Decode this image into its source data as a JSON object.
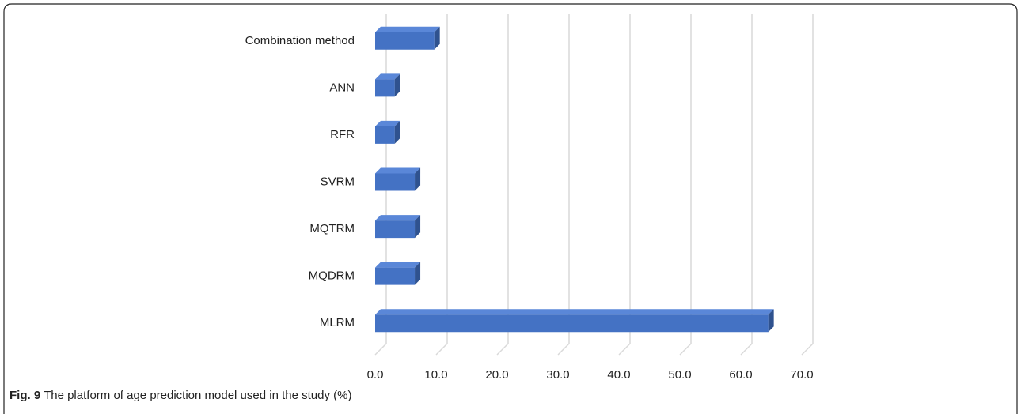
{
  "chart_data": {
    "type": "bar3d_horizontal",
    "categories": [
      "Combination method",
      "ANN",
      "RFR",
      "SVRM",
      "MQTRM",
      "MQDRM",
      "MLRM"
    ],
    "values": [
      9.7,
      3.2,
      3.2,
      6.5,
      6.5,
      6.5,
      64.5
    ],
    "color": "#4472c4",
    "xlim": [
      0,
      70
    ],
    "xticks": [
      {
        "value": 0,
        "label": "0.0"
      },
      {
        "value": 10,
        "label": "10.0"
      },
      {
        "value": 20,
        "label": "20.0"
      },
      {
        "value": 30,
        "label": "30.0"
      },
      {
        "value": 40,
        "label": "40.0"
      },
      {
        "value": 50,
        "label": "50.0"
      },
      {
        "value": 60,
        "label": "60.0"
      },
      {
        "value": 70,
        "label": "70.0"
      }
    ],
    "grid": true,
    "caption_label": "Fig. 9",
    "caption": "The platform of age prediction model used in the study (%)"
  }
}
